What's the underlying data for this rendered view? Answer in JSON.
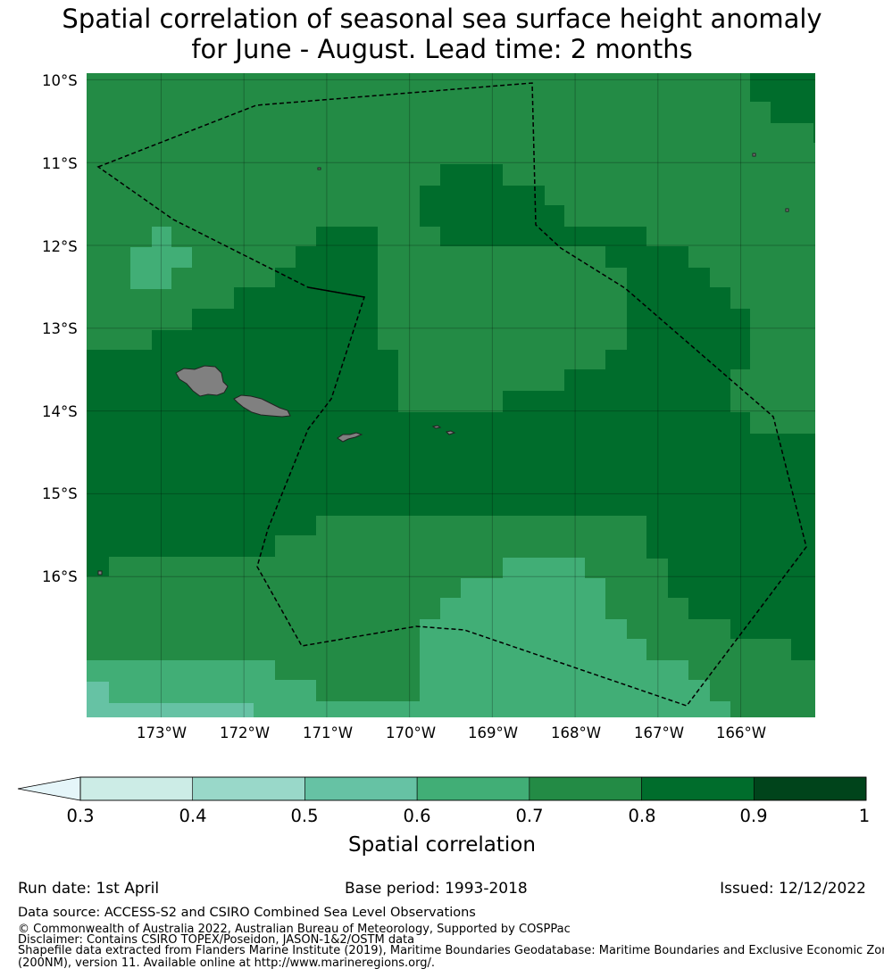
{
  "title": {
    "line1": "Spatial correlation of seasonal sea surface height anomaly",
    "line2": "for June - August. Lead time: 2 months"
  },
  "map": {
    "lat_labels": [
      "10°S",
      "11°S",
      "12°S",
      "13°S",
      "14°S",
      "15°S",
      "16°S"
    ],
    "lon_labels": [
      "173°W",
      "172°W",
      "171°W",
      "170°W",
      "169°W",
      "168°W",
      "167°W",
      "166°W"
    ],
    "lat_range": [
      -17.7,
      -9.92
    ],
    "lon_range": [
      -173.9,
      -165.1
    ],
    "land_color": "#808080",
    "eez_boundary_style": "dashed black"
  },
  "colorbar": {
    "label": "Spatial correlation",
    "ticks": [
      "0.3",
      "0.4",
      "0.5",
      "0.6",
      "0.7",
      "0.8",
      "0.9",
      "1"
    ],
    "colors": [
      "#ccece6",
      "#99d8c9",
      "#66c2a4",
      "#41ae76",
      "#238b45",
      "#006d2c",
      "#00441b"
    ],
    "under_color": "#e5f5f9"
  },
  "footer": {
    "run_date": "Run date: 1st April",
    "base_period": "Base period: 1993-2018",
    "issued": "Issued: 12/12/2022",
    "data_source": "Data source: ACCESS-S2 and CSIRO Combined Sea Level Observations",
    "copyright": "© Commonwealth of Australia 2022, Australian Bureau of Meteorology, Supported by COSPPac",
    "disclaimer": "Disclaimer: Contains CSIRO TOPEX/Poseidon, JASON-1&2/OSTM data",
    "shapefile_line1": "Shapefile data extracted from Flanders Marine Institute (2019), Maritime Boundaries Geodatabase: Maritime Boundaries and Exclusive Economic Zones",
    "shapefile_line2": "(200NM), version 11. Available online at http://www.marineregions.org/."
  }
}
